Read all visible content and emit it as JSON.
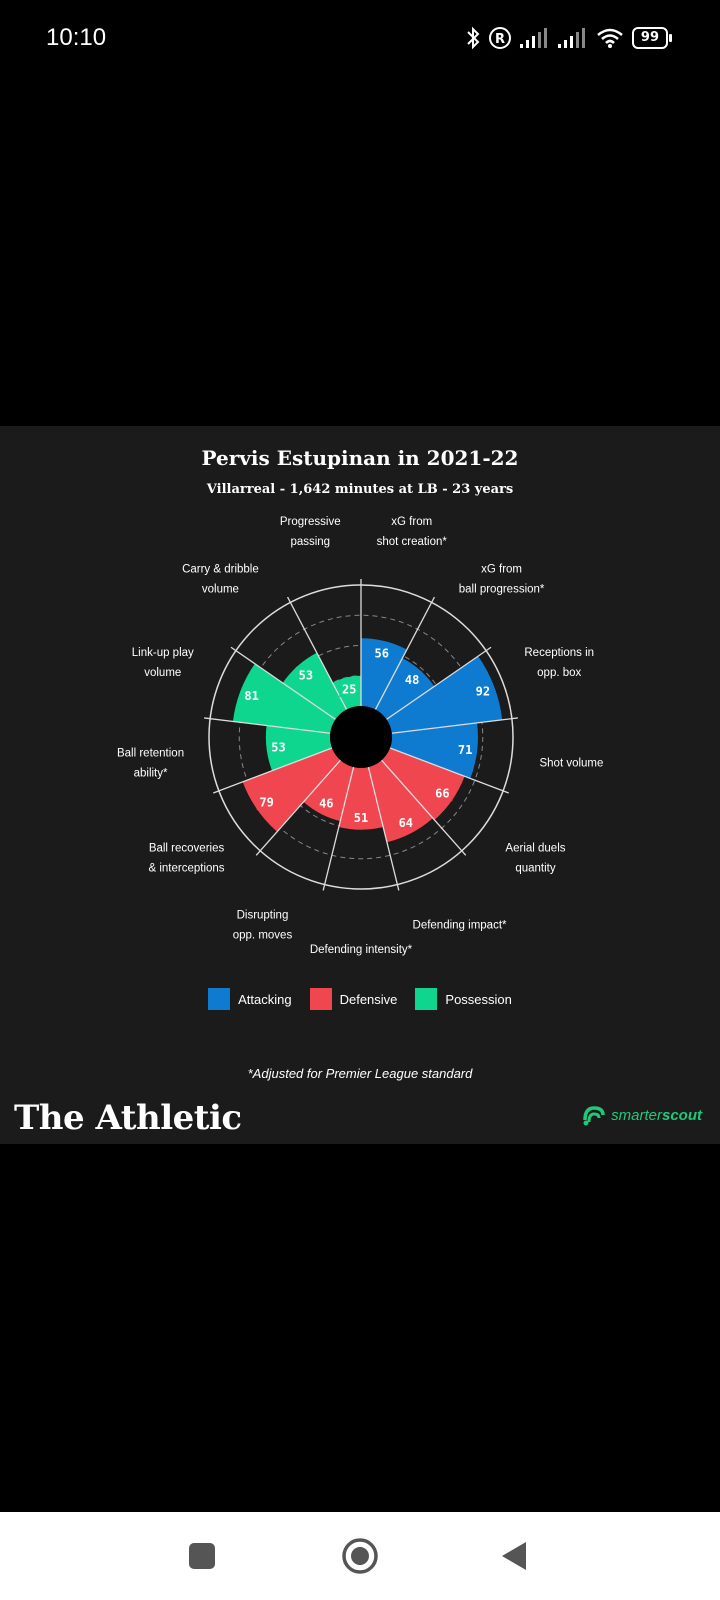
{
  "status_bar": {
    "time": "10:10",
    "battery": "99"
  },
  "infographic": {
    "title": "Pervis Estupinan in 2021-22",
    "subtitle": "Villarreal - 1,642 minutes at LB - 23 years",
    "footnote": "*Adjusted for Premier League standard",
    "brand": "The Athletic",
    "partner_part1": "smarter",
    "partner_part2": "scout"
  },
  "chart_data": {
    "type": "polar_bar",
    "title": "Pervis Estupinan in 2021-22",
    "subtitle": "Villarreal - 1,642 minutes at LB - 23 years",
    "rlim": [
      0,
      100
    ],
    "grid": true,
    "legend": [
      {
        "name": "Attacking",
        "color": "#0f7bd0"
      },
      {
        "name": "Defensive",
        "color": "#f04650"
      },
      {
        "name": "Possession",
        "color": "#0fd68f"
      }
    ],
    "legend_position": "bottom",
    "categories": [
      {
        "label": [
          "xG from",
          "shot creation*"
        ],
        "value": 56,
        "group": "Attacking"
      },
      {
        "label": [
          "xG from",
          "ball progression*"
        ],
        "value": 48,
        "group": "Attacking"
      },
      {
        "label": [
          "Receptions in",
          "opp. box"
        ],
        "value": 92,
        "group": "Attacking"
      },
      {
        "label": [
          "Shot volume"
        ],
        "value": 71,
        "group": "Attacking"
      },
      {
        "label": [
          "Aerial duels",
          "quantity"
        ],
        "value": 66,
        "group": "Defensive"
      },
      {
        "label": [
          "Defending impact*"
        ],
        "value": 64,
        "group": "Defensive"
      },
      {
        "label": [
          "Defending intensity*"
        ],
        "value": 51,
        "group": "Defensive"
      },
      {
        "label": [
          "Disrupting",
          "opp. moves"
        ],
        "value": 46,
        "group": "Defensive"
      },
      {
        "label": [
          "Ball recoveries",
          "& interceptions"
        ],
        "value": 79,
        "group": "Defensive"
      },
      {
        "label": [
          "Ball retention",
          "ability*"
        ],
        "value": 53,
        "group": "Possession"
      },
      {
        "label": [
          "Link-up play",
          "volume"
        ],
        "value": 81,
        "group": "Possession"
      },
      {
        "label": [
          "Carry & dribble",
          "volume"
        ],
        "value": 53,
        "group": "Possession"
      },
      {
        "label": [
          "Progressive",
          "passing"
        ],
        "value": 25,
        "group": "Possession"
      }
    ]
  }
}
